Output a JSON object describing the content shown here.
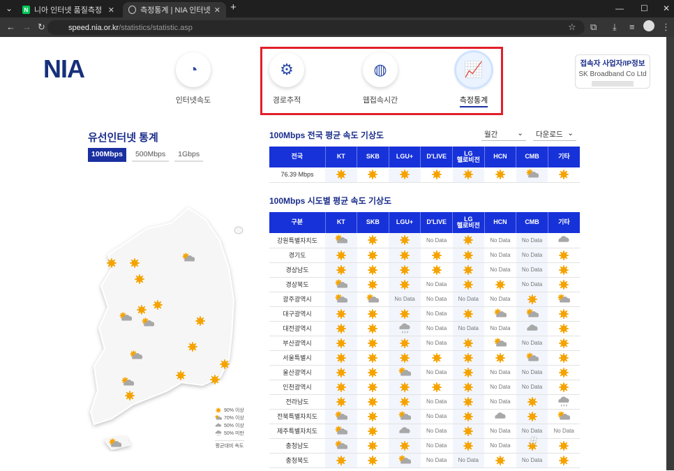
{
  "browser": {
    "tabs": [
      {
        "title": "니아 인터넷 품질측정 : 네이버",
        "favicon": "N"
      },
      {
        "title": "측정통계 | NIA 인터넷 품질측정"
      }
    ],
    "url_host": "speed.nia.or.kr",
    "url_path": "/statistics/statistic.asp"
  },
  "header": {
    "logo": "NIA",
    "menu": [
      {
        "label": "인터넷속도",
        "icon": "speedometer-icon"
      },
      {
        "label": "경로추적",
        "icon": "route-icon"
      },
      {
        "label": "웹접속시간",
        "icon": "globe-icon"
      },
      {
        "label": "측정통계",
        "icon": "chart-icon",
        "active": true
      }
    ],
    "ip_info": {
      "title": "접속자 사업자/IP정보",
      "isp": "SK Broadband Co Ltd"
    }
  },
  "sidebar": {
    "title": "유선인터넷 통계",
    "speed_tabs": [
      "100Mbps",
      "500Mbps",
      "1Gbps"
    ],
    "active_tab": "100Mbps"
  },
  "legend": {
    "items": [
      {
        "icon": "sun",
        "label": "90% 이상"
      },
      {
        "icon": "partly",
        "label": "70% 이상"
      },
      {
        "icon": "cloud",
        "label": "50% 이상"
      },
      {
        "icon": "rain",
        "label": "50% 미만"
      }
    ],
    "caption": "평균대비 속도"
  },
  "national": {
    "title": "100Mbps 전국 평균 속도 기상도",
    "period": "월간",
    "direction": "다운로드",
    "first_header": "전국",
    "isps": [
      "KT",
      "SKB",
      "LGU+",
      "D'LIVE",
      "LG 헬로비전",
      "HCN",
      "CMB",
      "기타"
    ],
    "speed": "76.39 Mbps",
    "values": [
      "sun",
      "sun",
      "sun",
      "sun",
      "sun",
      "sun",
      "partly",
      "sun"
    ]
  },
  "regional": {
    "title": "100Mbps 시도별 평균 속도 기상도",
    "first_header": "구분",
    "no_data": "No Data",
    "rows": [
      {
        "region": "강원특별자치도",
        "values": [
          "partly",
          "sun",
          "sun",
          "N",
          "sun",
          "N",
          "N",
          "cloud"
        ]
      },
      {
        "region": "경기도",
        "values": [
          "sun",
          "sun",
          "sun",
          "sun",
          "sun",
          "N",
          "N",
          "sun"
        ]
      },
      {
        "region": "경상남도",
        "values": [
          "sun",
          "sun",
          "sun",
          "sun",
          "sun",
          "N",
          "N",
          "sun"
        ]
      },
      {
        "region": "경상북도",
        "values": [
          "partly",
          "sun",
          "sun",
          "N",
          "sun",
          "sun",
          "N",
          "sun"
        ]
      },
      {
        "region": "광주광역시",
        "values": [
          "partly",
          "partly",
          "N",
          "N",
          "N",
          "N",
          "sun",
          "partly"
        ]
      },
      {
        "region": "대구광역시",
        "values": [
          "sun",
          "sun",
          "sun",
          "N",
          "sun",
          "partly",
          "partly",
          "sun"
        ]
      },
      {
        "region": "대전광역시",
        "values": [
          "sun",
          "sun",
          "rain",
          "N",
          "N",
          "N",
          "cloud",
          "sun"
        ]
      },
      {
        "region": "부산광역시",
        "values": [
          "sun",
          "sun",
          "sun",
          "N",
          "sun",
          "partly",
          "N",
          "sun"
        ]
      },
      {
        "region": "서울특별시",
        "values": [
          "sun",
          "sun",
          "sun",
          "sun",
          "sun",
          "sun",
          "partly",
          "sun"
        ]
      },
      {
        "region": "울산광역시",
        "values": [
          "sun",
          "sun",
          "partly",
          "N",
          "sun",
          "N",
          "N",
          "sun"
        ]
      },
      {
        "region": "인천광역시",
        "values": [
          "sun",
          "sun",
          "sun",
          "sun",
          "sun",
          "N",
          "N",
          "sun"
        ]
      },
      {
        "region": "전라남도",
        "values": [
          "sun",
          "sun",
          "sun",
          "N",
          "sun",
          "N",
          "sun",
          "rain"
        ]
      },
      {
        "region": "전북특별자치도",
        "values": [
          "partly",
          "sun",
          "partly",
          "N",
          "sun",
          "cloud",
          "sun",
          "partly"
        ]
      },
      {
        "region": "제주특별자치도",
        "values": [
          "partly",
          "sun",
          "cloud",
          "N",
          "sun",
          "N",
          "N",
          "N"
        ]
      },
      {
        "region": "충청남도",
        "values": [
          "partly",
          "sun",
          "sun",
          "N",
          "sun",
          "N",
          "sun",
          "sun"
        ]
      },
      {
        "region": "충청북도",
        "values": [
          "sun",
          "sun",
          "partly",
          "N",
          "N",
          "sun",
          "N",
          "sun"
        ]
      }
    ]
  },
  "map_icons": [
    "sun",
    "sun",
    "partly",
    "sun",
    "sun",
    "sun",
    "partly",
    "partly",
    "sun",
    "sun",
    "partly",
    "sun",
    "sun",
    "sun",
    "partly",
    "sun",
    "partly"
  ],
  "colors": {
    "accent": "#1732d9",
    "brand": "#1a2d8a",
    "highlight": "#e21e2a",
    "sun": "#f5a300",
    "cloud": "#a8a8a8"
  }
}
